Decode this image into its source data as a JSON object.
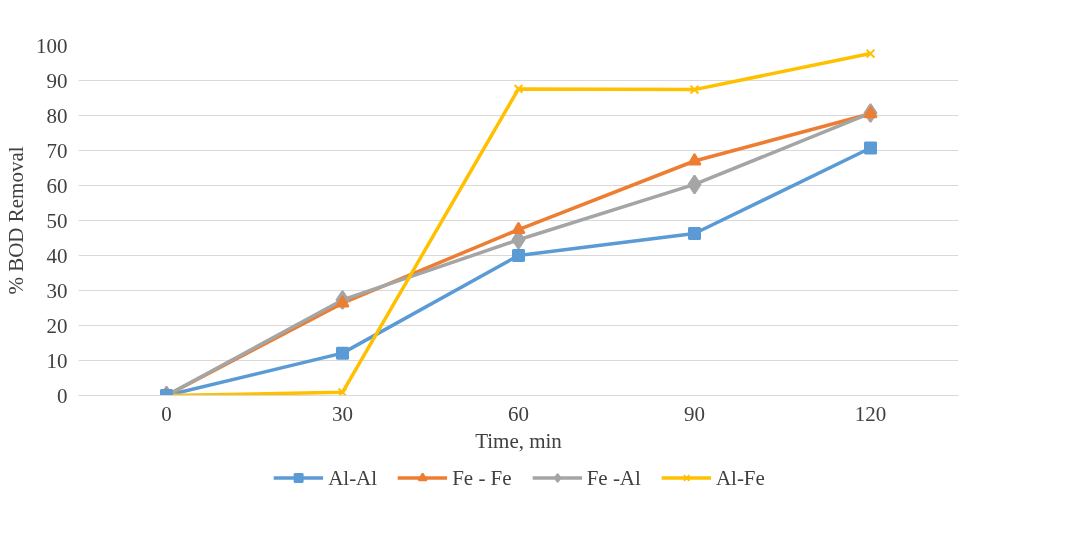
{
  "chart_data": {
    "type": "line",
    "xlabel": "Time, min",
    "ylabel": "% BOD Removal",
    "categories": [
      "0",
      "30",
      "60",
      "90",
      "120"
    ],
    "series": [
      {
        "name": "Al-Al",
        "color": "#5b9bd5",
        "marker": "square",
        "values": [
          0,
          12.1,
          40,
          46.3,
          70.7
        ]
      },
      {
        "name": "Fe - Fe",
        "color": "#ed7d31",
        "marker": "triangle",
        "values": [
          0,
          26.4,
          47.4,
          67,
          80.5
        ]
      },
      {
        "name": "Fe -Al",
        "color": "#a5a5a5",
        "marker": "diamond",
        "values": [
          0,
          27.3,
          44.5,
          60.3,
          80.7
        ]
      },
      {
        "name": "Al-Fe",
        "color": "#ffc000",
        "marker": "cross",
        "values": [
          0,
          0.9,
          87.6,
          87.4,
          97.7
        ]
      }
    ],
    "ylim": [
      0,
      100
    ],
    "yticks": [
      0,
      10,
      20,
      30,
      40,
      50,
      60,
      70,
      80,
      90,
      100
    ],
    "grid": "y",
    "legend": "bottom",
    "line_style": "solid"
  }
}
